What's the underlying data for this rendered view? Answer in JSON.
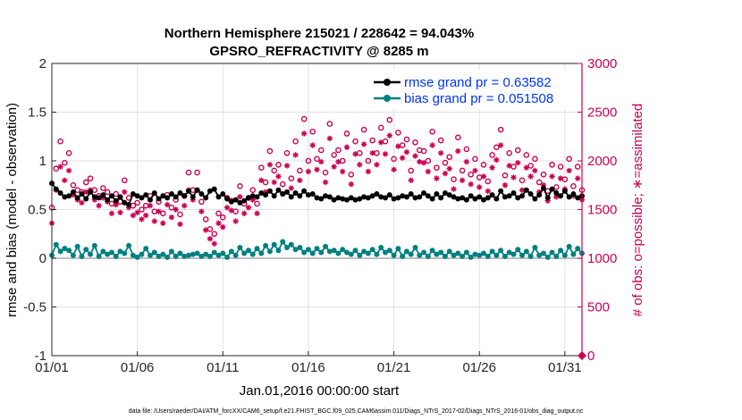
{
  "chart_data": {
    "type": "line",
    "title": "Northern Hemisphere 215021 / 228642 = 94.043%",
    "subtitle": "GPSRO_REFRACTIVITY @ 8285 m",
    "xlabel": "Jan.01,2016 00:00:00 start",
    "ylabel": "rmse and bias (model - observation)",
    "ylabel_right": "# of obs: o=possible; ∗=assimilated",
    "xlim": [
      1,
      32
    ],
    "ylim": [
      -1,
      2
    ],
    "ylim_right": [
      0,
      3000
    ],
    "x_ticks": [
      1,
      6,
      11,
      16,
      21,
      26,
      31
    ],
    "x_tick_labels": [
      "01/01",
      "01/06",
      "01/11",
      "01/16",
      "01/21",
      "01/26",
      "01/31"
    ],
    "y_ticks": [
      -1,
      -0.5,
      0,
      0.5,
      1,
      1.5,
      2
    ],
    "y_tick_labels": [
      "-1",
      "-0.5",
      "0",
      "0.5",
      "1",
      "1.5",
      "2"
    ],
    "y2_ticks": [
      0,
      500,
      1000,
      1500,
      2000,
      2500,
      3000
    ],
    "y2_tick_labels": [
      "0",
      "500",
      "1000",
      "1500",
      "2000",
      "2500",
      "3000"
    ],
    "grid": true,
    "legend_position": "top-right",
    "footer": "data file: /Users/raeder/DAI/ATM_forcXX/CAM6_setup/f.e21.FHIST_BGC.f09_025.CAM6assim.011/Diags_NTrS_2017-02/Diags_NTrS_2016-01/obs_diag_output.nc",
    "colors": {
      "rmse": "#000000",
      "bias": "#008080",
      "obs": "#cc0052",
      "right_axis": "#cc0052",
      "legend_text": "#0033ff",
      "zero_line": "#aaaaaa",
      "grid": "#e2e2e2"
    },
    "series": [
      {
        "name": "rmse grand pr = 0.63582",
        "axis": "left",
        "x": [
          1,
          1.25,
          1.5,
          1.75,
          2,
          2.25,
          2.5,
          2.75,
          3,
          3.25,
          3.5,
          3.75,
          4,
          4.25,
          4.5,
          4.75,
          5,
          5.25,
          5.5,
          5.75,
          6,
          6.25,
          6.5,
          6.75,
          7,
          7.25,
          7.5,
          7.75,
          8,
          8.25,
          8.5,
          8.75,
          9,
          9.25,
          9.5,
          9.75,
          10,
          10.25,
          10.5,
          10.75,
          11,
          11.25,
          11.5,
          11.75,
          12,
          12.25,
          12.5,
          12.75,
          13,
          13.25,
          13.5,
          13.75,
          14,
          14.25,
          14.5,
          14.75,
          15,
          15.25,
          15.5,
          15.75,
          16,
          16.25,
          16.5,
          16.75,
          17,
          17.25,
          17.5,
          17.75,
          18,
          18.25,
          18.5,
          18.75,
          19,
          19.25,
          19.5,
          19.75,
          20,
          20.25,
          20.5,
          20.75,
          21,
          21.25,
          21.5,
          21.75,
          22,
          22.25,
          22.5,
          22.75,
          23,
          23.25,
          23.5,
          23.75,
          24,
          24.25,
          24.5,
          24.75,
          25,
          25.25,
          25.5,
          25.75,
          26,
          26.25,
          26.5,
          26.75,
          27,
          27.25,
          27.5,
          27.75,
          28,
          28.25,
          28.5,
          28.75,
          29,
          29.25,
          29.5,
          29.75,
          30,
          30.25,
          30.5,
          30.75,
          31,
          31.25,
          31.5,
          31.75,
          32
        ],
        "values": [
          0.77,
          0.71,
          0.67,
          0.63,
          0.64,
          0.68,
          0.62,
          0.66,
          0.61,
          0.68,
          0.63,
          0.62,
          0.65,
          0.6,
          0.64,
          0.59,
          0.63,
          0.57,
          0.55,
          0.66,
          0.64,
          0.62,
          0.65,
          0.6,
          0.67,
          0.61,
          0.64,
          0.62,
          0.66,
          0.63,
          0.67,
          0.64,
          0.69,
          0.63,
          0.7,
          0.66,
          0.62,
          0.69,
          0.71,
          0.63,
          0.66,
          0.61,
          0.58,
          0.6,
          0.57,
          0.59,
          0.62,
          0.64,
          0.63,
          0.67,
          0.65,
          0.69,
          0.64,
          0.7,
          0.66,
          0.68,
          0.63,
          0.67,
          0.64,
          0.69,
          0.65,
          0.66,
          0.62,
          0.61,
          0.64,
          0.63,
          0.6,
          0.62,
          0.61,
          0.6,
          0.62,
          0.6,
          0.61,
          0.63,
          0.62,
          0.64,
          0.66,
          0.63,
          0.62,
          0.65,
          0.61,
          0.62,
          0.64,
          0.63,
          0.66,
          0.62,
          0.63,
          0.67,
          0.64,
          0.61,
          0.66,
          0.62,
          0.67,
          0.65,
          0.63,
          0.61,
          0.62,
          0.6,
          0.64,
          0.61,
          0.63,
          0.6,
          0.62,
          0.65,
          0.61,
          0.69,
          0.63,
          0.64,
          0.67,
          0.62,
          0.64,
          0.7,
          0.66,
          0.61,
          0.65,
          0.72,
          0.62,
          0.71,
          0.67,
          0.64,
          0.69,
          0.63,
          0.66,
          0.62,
          0.64
        ]
      },
      {
        "name": "bias grand pr = 0.051508",
        "axis": "left",
        "x": [
          1,
          1.25,
          1.5,
          1.75,
          2,
          2.25,
          2.5,
          2.75,
          3,
          3.25,
          3.5,
          3.75,
          4,
          4.25,
          4.5,
          4.75,
          5,
          5.25,
          5.5,
          5.75,
          6,
          6.25,
          6.5,
          6.75,
          7,
          7.25,
          7.5,
          7.75,
          8,
          8.25,
          8.5,
          8.75,
          9,
          9.25,
          9.5,
          9.75,
          10,
          10.25,
          10.5,
          10.75,
          11,
          11.25,
          11.5,
          11.75,
          12,
          12.25,
          12.5,
          12.75,
          13,
          13.25,
          13.5,
          13.75,
          14,
          14.25,
          14.5,
          14.75,
          15,
          15.25,
          15.5,
          15.75,
          16,
          16.25,
          16.5,
          16.75,
          17,
          17.25,
          17.5,
          17.75,
          18,
          18.25,
          18.5,
          18.75,
          19,
          19.25,
          19.5,
          19.75,
          20,
          20.25,
          20.5,
          20.75,
          21,
          21.25,
          21.5,
          21.75,
          22,
          22.25,
          22.5,
          22.75,
          23,
          23.25,
          23.5,
          23.75,
          24,
          24.25,
          24.5,
          24.75,
          25,
          25.25,
          25.5,
          25.75,
          26,
          26.25,
          26.5,
          26.75,
          27,
          27.25,
          27.5,
          27.75,
          28,
          28.25,
          28.5,
          28.75,
          29,
          29.25,
          29.5,
          29.75,
          30,
          30.25,
          30.5,
          30.75,
          31,
          31.25,
          31.5,
          31.75,
          32
        ],
        "values": [
          0.03,
          0.14,
          0.07,
          0.1,
          0.08,
          0.03,
          0.12,
          0.02,
          0.09,
          0.04,
          0.13,
          0.02,
          0.07,
          0.04,
          0.06,
          0.02,
          0.07,
          0.05,
          0.13,
          0.03,
          0.01,
          0.04,
          0.1,
          0.03,
          0.06,
          0.02,
          0.04,
          0.01,
          0.07,
          0.02,
          0.05,
          0.02,
          0.03,
          0.04,
          0.05,
          0.02,
          0.04,
          0.02,
          0.06,
          0.03,
          0.05,
          0.01,
          0.07,
          0.03,
          0.11,
          0.05,
          0.08,
          0.04,
          0.1,
          0.05,
          0.13,
          0.07,
          0.14,
          0.08,
          0.17,
          0.11,
          0.14,
          0.09,
          0.11,
          0.06,
          0.09,
          0.05,
          0.1,
          0.06,
          0.12,
          0.07,
          0.08,
          0.05,
          0.09,
          0.06,
          0.04,
          0.08,
          0.03,
          0.07,
          0.05,
          0.09,
          0.04,
          0.11,
          0.06,
          0.08,
          0.03,
          0.1,
          0.02,
          0.07,
          0.04,
          0.11,
          0.03,
          0.06,
          0.02,
          0.08,
          0.04,
          0.06,
          0.02,
          0.07,
          0.03,
          0.05,
          0.02,
          0.06,
          0.01,
          0.04,
          0.03,
          0.05,
          0.02,
          0.07,
          0.03,
          0.08,
          0.02,
          0.06,
          0.04,
          0.09,
          0.03,
          0.07,
          0.02,
          0.11,
          0.03,
          0.05,
          0.01,
          0.06,
          0.02,
          0.08,
          0.03,
          0.12,
          0.04,
          0.1,
          0.05
        ]
      },
      {
        "name": "possible observations",
        "axis": "right",
        "marker": "o",
        "x": [
          1,
          1.25,
          1.5,
          1.75,
          2,
          2.25,
          2.5,
          2.75,
          3,
          3.25,
          3.5,
          3.75,
          4,
          4.25,
          4.5,
          4.75,
          5,
          5.25,
          5.5,
          5.75,
          6,
          6.25,
          6.5,
          6.75,
          7,
          7.25,
          7.5,
          7.75,
          8,
          8.25,
          8.5,
          8.75,
          9,
          9.25,
          9.5,
          9.75,
          10,
          10.25,
          10.5,
          10.75,
          11,
          11.25,
          11.5,
          11.75,
          12,
          12.25,
          12.5,
          12.75,
          13,
          13.25,
          13.5,
          13.75,
          14,
          14.25,
          14.5,
          14.75,
          15,
          15.25,
          15.5,
          15.75,
          16,
          16.25,
          16.5,
          16.75,
          17,
          17.25,
          17.5,
          17.75,
          18,
          18.25,
          18.5,
          18.75,
          19,
          19.25,
          19.5,
          19.75,
          20,
          20.25,
          20.5,
          20.75,
          21,
          21.25,
          21.5,
          21.75,
          22,
          22.25,
          22.5,
          22.75,
          23,
          23.25,
          23.5,
          23.75,
          24,
          24.25,
          24.5,
          24.75,
          25,
          25.25,
          25.5,
          25.75,
          26,
          26.25,
          26.5,
          26.75,
          27,
          27.25,
          27.5,
          27.75,
          28,
          28.25,
          28.5,
          28.75,
          29,
          29.25,
          29.5,
          29.75,
          30,
          30.25,
          30.5,
          30.75,
          31,
          31.25,
          31.5,
          31.75,
          32
        ],
        "values": [
          1520,
          1920,
          2200,
          1980,
          2080,
          1750,
          1700,
          1680,
          1780,
          1820,
          1700,
          1640,
          1720,
          1680,
          1560,
          1660,
          1580,
          1800,
          1620,
          1540,
          1570,
          1500,
          1540,
          1640,
          1480,
          1580,
          1460,
          1650,
          1520,
          1600,
          1450,
          1640,
          1880,
          1700,
          1880,
          1580,
          1400,
          1300,
          1250,
          1460,
          1420,
          1620,
          1590,
          1480,
          1740,
          1560,
          1620,
          1700,
          1560,
          1930,
          1780,
          2100,
          1900,
          1960,
          1760,
          2080,
          1820,
          2200,
          1900,
          2430,
          2000,
          2300,
          2020,
          2110,
          1880,
          2380,
          2060,
          2110,
          2000,
          2280,
          1860,
          2200,
          2080,
          2320,
          2000,
          2210,
          2080,
          2340,
          2200,
          2420,
          2020,
          2290,
          2160,
          2220,
          1900,
          2190,
          2110,
          2100,
          2000,
          2300,
          1930,
          2210,
          1980,
          2040,
          1810,
          2240,
          1900,
          2120,
          1860,
          2020,
          1830,
          1960,
          1790,
          2060,
          2140,
          2320,
          1850,
          2080,
          1940,
          2110,
          1800,
          2060,
          1950,
          2020,
          1780,
          1860,
          1690,
          1960,
          1730,
          1940,
          1810,
          2020,
          1740,
          1940,
          1700
        ]
      },
      {
        "name": "assimilated observations",
        "axis": "right",
        "marker": "*",
        "x": [
          1,
          1.25,
          1.5,
          1.75,
          2,
          2.25,
          2.5,
          2.75,
          3,
          3.25,
          3.5,
          3.75,
          4,
          4.25,
          4.5,
          4.75,
          5,
          5.25,
          5.5,
          5.75,
          6,
          6.25,
          6.5,
          6.75,
          7,
          7.25,
          7.5,
          7.75,
          8,
          8.25,
          8.5,
          8.75,
          9,
          9.25,
          9.5,
          9.75,
          10,
          10.25,
          10.5,
          10.75,
          11,
          11.25,
          11.5,
          11.75,
          12,
          12.25,
          12.5,
          12.75,
          13,
          13.25,
          13.5,
          13.75,
          14,
          14.25,
          14.5,
          14.75,
          15,
          15.25,
          15.5,
          15.75,
          16,
          16.25,
          16.5,
          16.75,
          17,
          17.25,
          17.5,
          17.75,
          18,
          18.25,
          18.5,
          18.75,
          19,
          19.25,
          19.5,
          19.75,
          20,
          20.25,
          20.5,
          20.75,
          21,
          21.25,
          21.5,
          21.75,
          22,
          22.25,
          22.5,
          22.75,
          23,
          23.25,
          23.5,
          23.75,
          24,
          24.25,
          24.5,
          24.75,
          25,
          25.25,
          25.5,
          25.75,
          26,
          26.25,
          26.5,
          26.75,
          27,
          27.25,
          27.5,
          27.75,
          28,
          28.25,
          28.5,
          28.75,
          29,
          29.25,
          29.5,
          29.75,
          30,
          30.25,
          30.5,
          30.75,
          31,
          31.25,
          31.5,
          31.75,
          32
        ],
        "values": [
          1360,
          1700,
          1940,
          1800,
          1900,
          1650,
          1600,
          1570,
          1680,
          1700,
          1600,
          1540,
          1620,
          1580,
          1460,
          1550,
          1470,
          1680,
          1520,
          1440,
          1470,
          1400,
          1440,
          1540,
          1380,
          1480,
          1360,
          1550,
          1420,
          1500,
          1350,
          1540,
          1700,
          1600,
          1700,
          1480,
          1290,
          1200,
          1150,
          1360,
          1320,
          1520,
          1490,
          1380,
          1630,
          1460,
          1520,
          1600,
          1460,
          1800,
          1680,
          1960,
          1780,
          1840,
          1660,
          1950,
          1720,
          2060,
          1800,
          2280,
          1890,
          2160,
          1910,
          1990,
          1780,
          2230,
          1940,
          1990,
          1890,
          2140,
          1760,
          2070,
          1960,
          2170,
          1890,
          2080,
          1960,
          2190,
          2070,
          2260,
          1910,
          2150,
          2030,
          2090,
          1800,
          2050,
          1990,
          1980,
          1890,
          2160,
          1820,
          2080,
          1870,
          1920,
          1710,
          2100,
          1800,
          1990,
          1760,
          1900,
          1730,
          1840,
          1690,
          1930,
          2010,
          2160,
          1750,
          1950,
          1830,
          1980,
          1700,
          1930,
          1840,
          1900,
          1680,
          1750,
          1590,
          1840,
          1630,
          1820,
          1710,
          1900,
          1640,
          1820,
          1600
        ]
      }
    ]
  }
}
